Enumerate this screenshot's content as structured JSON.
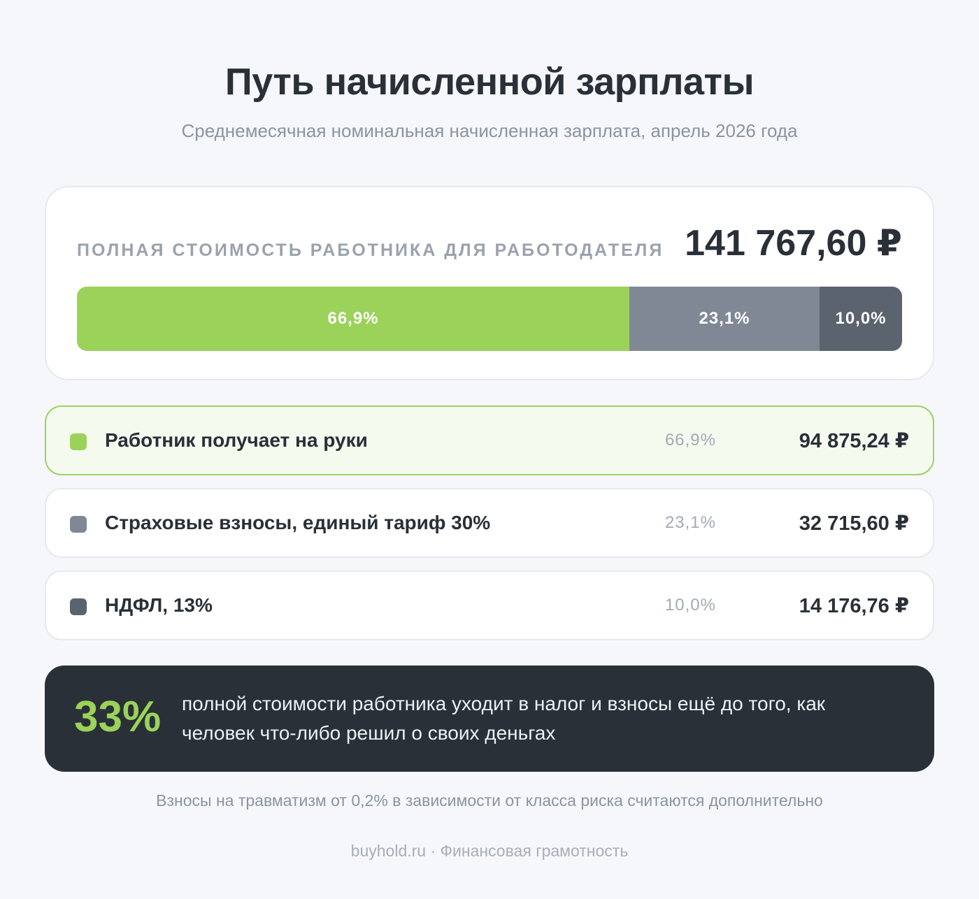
{
  "title": "Путь начисленной зарплаты",
  "subtitle": "Среднемесячная номинальная начисленная зарплата, апрель 2026 года",
  "total": {
    "label": "ПОЛНАЯ СТОИМОСТЬ РАБОТНИКА ДЛЯ РАБОТОДАТЕЛЯ",
    "value": "141 767,60 ₽"
  },
  "chart_data": {
    "type": "bar",
    "orientation": "horizontal-stacked",
    "title": "",
    "xlabel": "",
    "ylabel": "",
    "total": 141767.6,
    "categories": [
      "Работник получает на руки",
      "Страховые взносы, единый тариф 30%",
      "НДФЛ, 13%"
    ],
    "values": [
      94875.24,
      32715.6,
      14176.76
    ],
    "percents": [
      66.9,
      23.1,
      10.0
    ],
    "percent_labels": [
      "66,9%",
      "23,1%",
      "10,0%"
    ],
    "amount_labels": [
      "94 875,24 ₽",
      "32 715,60 ₽",
      "14 176,76 ₽"
    ],
    "colors": [
      "#9ad25a",
      "#7f8894",
      "#5b636e"
    ],
    "grid": false,
    "legend": "below"
  },
  "callout": {
    "big": "33%",
    "text": "полной стоимости работника уходит в налог и взносы ещё до того, как человек что-либо решил о своих деньгах"
  },
  "note": "Взносы на травматизм от 0,2% в зависимости от класса риска считаются дополнительно",
  "footer": "buyhold.ru · Финансовая грамотность"
}
